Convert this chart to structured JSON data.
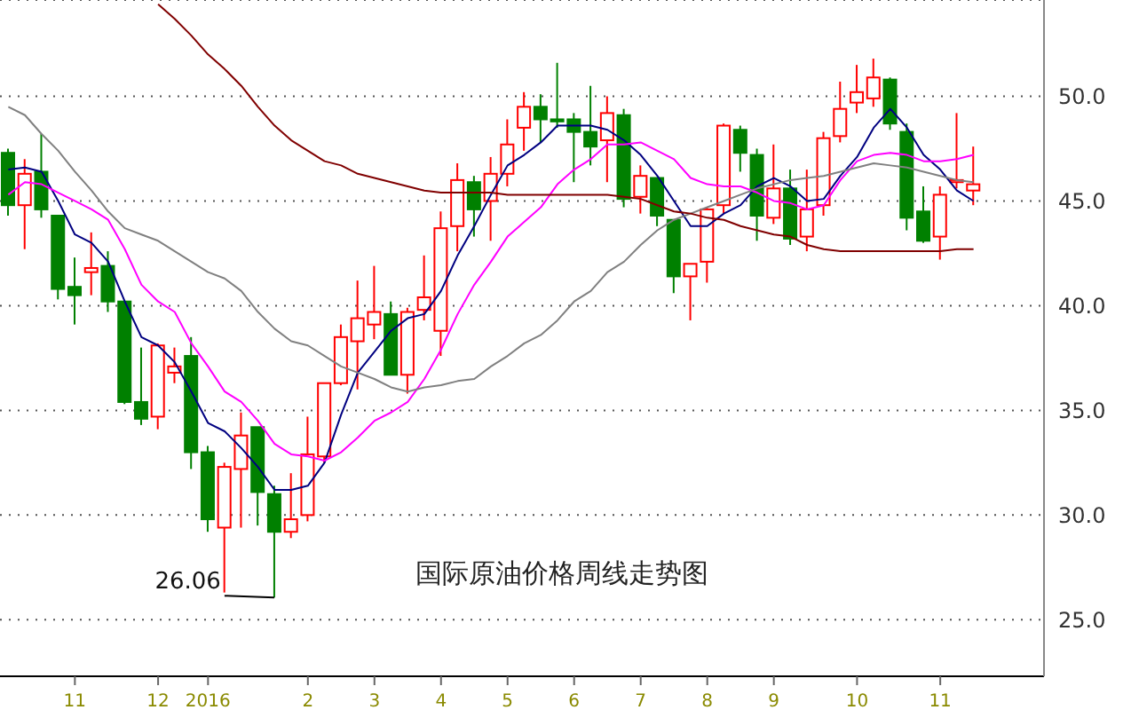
{
  "chart_data": {
    "type": "candlestick",
    "title": "国际原油价格周线走势图",
    "categories": [
      null,
      null,
      null,
      null,
      "11",
      null,
      null,
      null,
      null,
      "12",
      null,
      null,
      "2016",
      null,
      null,
      null,
      null,
      null,
      "2",
      null,
      null,
      null,
      "3",
      null,
      null,
      null,
      "4",
      null,
      null,
      null,
      "5",
      null,
      null,
      null,
      "6",
      null,
      null,
      null,
      "7",
      null,
      null,
      null,
      "8",
      null,
      null,
      null,
      "9",
      null,
      null,
      null,
      null,
      "10",
      null,
      null,
      null,
      null,
      "11",
      null,
      null
    ],
    "ohlc": [
      [
        47.3,
        47.5,
        44.3,
        44.8
      ],
      [
        44.8,
        47.0,
        42.7,
        46.3
      ],
      [
        46.4,
        48.2,
        44.2,
        44.6
      ],
      [
        44.3,
        44.3,
        40.3,
        40.8
      ],
      [
        40.9,
        42.3,
        39.1,
        40.5
      ],
      [
        41.6,
        43.5,
        40.5,
        41.8
      ],
      [
        41.9,
        42.6,
        39.7,
        40.2
      ],
      [
        40.2,
        40.2,
        35.3,
        35.4
      ],
      [
        35.4,
        38.0,
        34.3,
        34.6
      ],
      [
        34.7,
        38.2,
        34.1,
        38.1
      ],
      [
        36.8,
        38.0,
        36.3,
        37.1
      ],
      [
        37.6,
        38.5,
        32.2,
        33.0
      ],
      [
        33.0,
        33.3,
        29.2,
        29.8
      ],
      [
        29.4,
        32.5,
        26.3,
        32.3
      ],
      [
        32.2,
        34.9,
        29.4,
        33.8
      ],
      [
        34.2,
        34.2,
        29.5,
        31.1
      ],
      [
        31.0,
        31.4,
        26.06,
        29.2
      ],
      [
        29.2,
        32.0,
        28.9,
        29.8
      ],
      [
        30.0,
        34.7,
        29.7,
        32.9
      ],
      [
        32.8,
        36.3,
        32.5,
        36.3
      ],
      [
        36.3,
        39.1,
        36.2,
        38.5
      ],
      [
        38.3,
        41.2,
        36.0,
        39.4
      ],
      [
        39.1,
        41.9,
        38.4,
        39.7
      ],
      [
        39.6,
        40.2,
        36.7,
        36.7
      ],
      [
        36.7,
        39.9,
        35.8,
        39.7
      ],
      [
        39.8,
        42.4,
        39.3,
        40.4
      ],
      [
        38.8,
        44.5,
        37.6,
        43.7
      ],
      [
        43.8,
        46.8,
        42.6,
        46.0
      ],
      [
        45.9,
        46.2,
        43.3,
        44.6
      ],
      [
        45.0,
        47.1,
        43.1,
        46.3
      ],
      [
        46.3,
        48.9,
        45.7,
        47.7
      ],
      [
        48.5,
        50.2,
        47.4,
        49.5
      ],
      [
        49.5,
        50.1,
        47.8,
        48.9
      ],
      [
        48.9,
        51.6,
        48.5,
        48.8
      ],
      [
        48.9,
        49.2,
        45.9,
        48.3
      ],
      [
        48.3,
        50.5,
        46.7,
        47.6
      ],
      [
        47.9,
        50.0,
        45.9,
        49.2
      ],
      [
        49.1,
        49.4,
        44.7,
        45.1
      ],
      [
        45.2,
        46.7,
        44.4,
        46.2
      ],
      [
        46.1,
        46.1,
        43.8,
        44.3
      ],
      [
        44.1,
        44.1,
        40.6,
        41.4
      ],
      [
        41.4,
        42.0,
        39.3,
        42.0
      ],
      [
        42.1,
        44.7,
        41.1,
        44.6
      ],
      [
        44.8,
        48.7,
        44.4,
        48.6
      ],
      [
        48.4,
        48.6,
        46.4,
        47.3
      ],
      [
        47.2,
        47.5,
        43.1,
        44.3
      ],
      [
        44.2,
        47.7,
        43.9,
        45.6
      ],
      [
        45.6,
        46.5,
        42.9,
        43.2
      ],
      [
        43.3,
        46.5,
        42.6,
        44.6
      ],
      [
        44.8,
        48.3,
        44.3,
        48.0
      ],
      [
        48.1,
        50.7,
        47.8,
        49.4
      ],
      [
        49.7,
        51.5,
        49.2,
        50.2
      ],
      [
        49.9,
        51.8,
        49.5,
        50.9
      ],
      [
        50.8,
        50.9,
        48.4,
        48.7
      ],
      [
        48.3,
        48.7,
        43.6,
        44.2
      ],
      [
        44.5,
        45.7,
        43.0,
        43.1
      ],
      [
        43.3,
        45.7,
        42.2,
        45.3
      ],
      [
        45.9,
        49.2,
        45.6,
        46.0
      ],
      [
        45.5,
        47.6,
        44.8,
        45.8
      ]
    ],
    "colors": [
      "#008000",
      "#ff0000",
      "#008000",
      "#008000",
      "#008000",
      "#ff0000",
      "#008000",
      "#008000",
      "#008000",
      "#ff0000",
      "#ff0000",
      "#008000",
      "#008000",
      "#ff0000",
      "#ff0000",
      "#008000",
      "#008000",
      "#ff0000",
      "#ff0000",
      "#ff0000",
      "#ff0000",
      "#ff0000",
      "#ff0000",
      "#008000",
      "#ff0000",
      "#ff0000",
      "#ff0000",
      "#ff0000",
      "#008000",
      "#ff0000",
      "#ff0000",
      "#ff0000",
      "#008000",
      "#008000",
      "#008000",
      "#008000",
      "#ff0000",
      "#008000",
      "#ff0000",
      "#008000",
      "#008000",
      "#ff0000",
      "#ff0000",
      "#ff0000",
      "#008000",
      "#008000",
      "#ff0000",
      "#008000",
      "#ff0000",
      "#ff0000",
      "#ff0000",
      "#ff0000",
      "#ff0000",
      "#008000",
      "#008000",
      "#008000",
      "#ff0000",
      "#ff0000",
      "#ff0000"
    ],
    "series": [
      {
        "type": "line",
        "color": "#000080",
        "values": [
          46.5,
          46.6,
          46.4,
          45.0,
          43.4,
          43.0,
          42.1,
          40.2,
          38.5,
          38.1,
          37.3,
          35.9,
          34.4,
          34.0,
          33.2,
          32.3,
          31.2,
          31.2,
          31.4,
          32.5,
          34.8,
          36.8,
          37.8,
          38.8,
          39.4,
          39.6,
          40.7,
          42.4,
          43.8,
          45.3,
          46.7,
          47.2,
          47.8,
          48.6,
          48.6,
          48.6,
          48.4,
          47.9,
          47.2,
          46.2,
          45.0,
          43.8,
          43.8,
          44.4,
          44.8,
          45.7,
          46.1,
          45.7,
          45.0,
          45.1,
          46.2,
          47.1,
          48.5,
          49.4,
          48.5,
          47.2,
          46.5,
          45.5,
          45.0
        ]
      },
      {
        "type": "line",
        "color": "#ff00ff",
        "values": [
          45.3,
          45.9,
          45.8,
          45.4,
          45.0,
          44.6,
          44.1,
          42.7,
          41.0,
          40.2,
          39.7,
          38.2,
          37.1,
          35.9,
          35.4,
          34.5,
          33.4,
          32.9,
          32.8,
          32.6,
          33.0,
          33.7,
          34.5,
          34.9,
          35.4,
          36.5,
          37.9,
          39.6,
          41.0,
          42.1,
          43.3,
          44.0,
          44.7,
          45.8,
          46.5,
          47.0,
          47.7,
          47.7,
          47.8,
          47.4,
          47.0,
          46.1,
          45.8,
          45.7,
          45.7,
          45.4,
          45.0,
          44.9,
          44.6,
          44.8,
          46.0,
          46.9,
          47.2,
          47.3,
          47.2,
          46.9,
          46.9,
          47.0,
          47.2
        ]
      },
      {
        "type": "line",
        "color": "#808080",
        "values": [
          49.5,
          49.1,
          48.2,
          47.4,
          46.4,
          45.5,
          44.5,
          43.7,
          43.4,
          43.1,
          42.6,
          42.1,
          41.6,
          41.3,
          40.7,
          39.7,
          38.9,
          38.3,
          38.1,
          37.6,
          37.1,
          36.8,
          36.5,
          36.1,
          35.9,
          36.1,
          36.2,
          36.4,
          36.5,
          37.1,
          37.6,
          38.2,
          38.6,
          39.3,
          40.2,
          40.7,
          41.6,
          42.1,
          42.9,
          43.6,
          44.1,
          44.4,
          44.7,
          45.0,
          45.3,
          45.6,
          45.8,
          46.0,
          46.1,
          46.2,
          46.4,
          46.6,
          46.8,
          46.7,
          46.6,
          46.4,
          46.2,
          46.0,
          45.9
        ]
      },
      {
        "type": "line",
        "color": "#800000",
        "values": [
          null,
          null,
          null,
          null,
          null,
          null,
          null,
          null,
          null,
          54.4,
          53.7,
          52.9,
          52.0,
          51.3,
          50.5,
          49.5,
          48.6,
          47.9,
          47.4,
          46.9,
          46.7,
          46.3,
          46.1,
          45.9,
          45.7,
          45.5,
          45.4,
          45.4,
          45.4,
          45.4,
          45.3,
          45.3,
          45.3,
          45.3,
          45.3,
          45.3,
          45.3,
          45.2,
          45.1,
          44.8,
          44.5,
          44.4,
          44.2,
          44.1,
          43.8,
          43.6,
          43.4,
          43.3,
          42.9,
          42.7,
          42.6,
          42.6,
          42.6,
          42.6,
          42.6,
          42.6,
          42.6,
          42.7,
          42.7
        ]
      }
    ],
    "ylim": [
      22.3,
      54.6
    ],
    "yticks": [
      {
        "value": 25,
        "label": "25.0"
      },
      {
        "value": 30,
        "label": "30.0"
      },
      {
        "value": 35,
        "label": "35.0"
      },
      {
        "value": 40,
        "label": "40.0"
      },
      {
        "value": 45,
        "label": "45.0"
      },
      {
        "value": 50,
        "label": "50.0"
      }
    ],
    "grid": "y",
    "annotations": [
      "26.06"
    ]
  }
}
